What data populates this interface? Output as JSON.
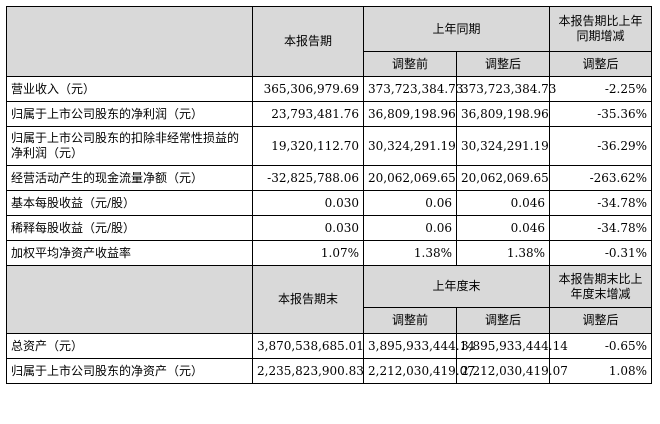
{
  "header1": {
    "current_period": "本报告期",
    "same_period_last_year": "上年同期",
    "yoy_change": "本报告期比上年同期增减",
    "before_adjust": "调整前",
    "after_adjust": "调整后",
    "change_after_adjust": "调整后"
  },
  "rows1": [
    {
      "label": "营业收入（元）",
      "current": "365,306,979.69",
      "before": "373,723,384.73",
      "after": "373,723,384.73",
      "change": "-2.25%"
    },
    {
      "label": "归属于上市公司股东的净利润（元）",
      "current": "23,793,481.76",
      "before": "36,809,198.96",
      "after": "36,809,198.96",
      "change": "-35.36%"
    },
    {
      "label": "归属于上市公司股东的扣除非经常性损益的净利润（元）",
      "current": "19,320,112.70",
      "before": "30,324,291.19",
      "after": "30,324,291.19",
      "change": "-36.29%"
    },
    {
      "label": "经营活动产生的现金流量净额（元）",
      "current": "-32,825,788.06",
      "before": "20,062,069.65",
      "after": "20,062,069.65",
      "change": "-263.62%"
    },
    {
      "label": "基本每股收益（元/股）",
      "current": "0.030",
      "before": "0.06",
      "after": "0.046",
      "change": "-34.78%"
    },
    {
      "label": "稀释每股收益（元/股）",
      "current": "0.030",
      "before": "0.06",
      "after": "0.046",
      "change": "-34.78%"
    },
    {
      "label": "加权平均净资产收益率",
      "current": "1.07%",
      "before": "1.38%",
      "after": "1.38%",
      "change": "-0.31%"
    }
  ],
  "header2": {
    "period_end": "本报告期末",
    "last_year_end": "上年度末",
    "change_vs_year_end": "本报告期末比上年度末增减",
    "before_adjust": "调整前",
    "after_adjust": "调整后",
    "change_after_adjust": "调整后"
  },
  "rows2": [
    {
      "label": "总资产（元）",
      "current": "3,870,538,685.01",
      "before": "3,895,933,444.14",
      "after": "3,895,933,444.14",
      "change": "-0.65%"
    },
    {
      "label": "归属于上市公司股东的净资产（元）",
      "current": "2,235,823,900.83",
      "before": "2,212,030,419.07",
      "after": "2,212,030,419.07",
      "change": "1.08%"
    }
  ]
}
